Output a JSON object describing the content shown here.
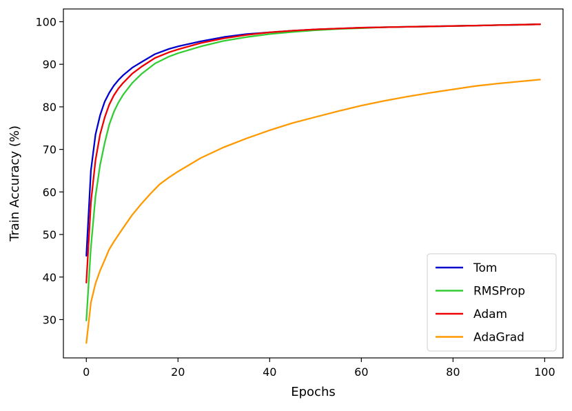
{
  "chart_data": {
    "type": "line",
    "title": "",
    "xlabel": "Epochs",
    "ylabel": "Train Accuracy (%)",
    "xlim": [
      -5,
      104
    ],
    "ylim": [
      21,
      103
    ],
    "xticks": [
      0,
      20,
      40,
      60,
      80,
      100
    ],
    "yticks": [
      30,
      40,
      50,
      60,
      70,
      80,
      90,
      100
    ],
    "grid": false,
    "legend_position": "bottom-right",
    "series": [
      {
        "name": "Tom",
        "color": "#0000cc",
        "x": [
          0,
          1,
          2,
          3,
          4,
          5,
          6,
          7,
          8,
          10,
          12,
          15,
          18,
          20,
          25,
          30,
          35,
          40,
          45,
          50,
          55,
          60,
          65,
          70,
          75,
          80,
          85,
          90,
          95,
          99
        ],
        "y": [
          45.0,
          65.0,
          73.5,
          78.0,
          81.2,
          83.3,
          85.0,
          86.3,
          87.4,
          89.2,
          90.5,
          92.4,
          93.6,
          94.2,
          95.4,
          96.4,
          97.1,
          97.5,
          97.9,
          98.2,
          98.4,
          98.6,
          98.7,
          98.8,
          98.9,
          99.0,
          99.1,
          99.2,
          99.3,
          99.4
        ]
      },
      {
        "name": "RMSProp",
        "color": "#33cc33",
        "x": [
          0,
          1,
          2,
          3,
          4,
          5,
          6,
          7,
          8,
          10,
          12,
          15,
          18,
          20,
          25,
          30,
          35,
          40,
          45,
          50,
          55,
          60,
          65,
          70,
          75,
          80,
          85,
          90,
          95,
          99
        ],
        "y": [
          29.8,
          47.0,
          59.0,
          66.3,
          71.5,
          75.8,
          78.8,
          81.0,
          82.8,
          85.6,
          87.7,
          90.2,
          91.8,
          92.6,
          94.2,
          95.5,
          96.4,
          97.1,
          97.6,
          98.0,
          98.3,
          98.5,
          98.7,
          98.8,
          98.9,
          99.0,
          99.1,
          99.2,
          99.3,
          99.4
        ]
      },
      {
        "name": "Adam",
        "color": "#ee0000",
        "x": [
          0,
          1,
          2,
          3,
          4,
          5,
          6,
          7,
          8,
          10,
          12,
          15,
          18,
          20,
          25,
          30,
          35,
          40,
          45,
          50,
          55,
          60,
          65,
          70,
          75,
          80,
          85,
          90,
          95,
          99
        ],
        "y": [
          38.7,
          57.5,
          67.5,
          73.5,
          77.5,
          80.5,
          82.7,
          84.3,
          85.6,
          87.8,
          89.4,
          91.5,
          92.8,
          93.5,
          95.0,
          96.1,
          96.9,
          97.5,
          97.9,
          98.2,
          98.4,
          98.6,
          98.7,
          98.8,
          98.9,
          99.0,
          99.1,
          99.2,
          99.3,
          99.4
        ]
      },
      {
        "name": "AdaGrad",
        "color": "#ff9900",
        "x": [
          0,
          1,
          2,
          3,
          4,
          5,
          6,
          8,
          10,
          12,
          14,
          16,
          18,
          20,
          25,
          30,
          35,
          40,
          45,
          50,
          55,
          60,
          65,
          70,
          75,
          80,
          85,
          90,
          95,
          99
        ],
        "y": [
          24.5,
          34.0,
          38.5,
          41.5,
          44.0,
          46.5,
          48.3,
          51.5,
          54.6,
          57.2,
          59.6,
          61.8,
          63.4,
          64.8,
          68.0,
          70.5,
          72.6,
          74.5,
          76.2,
          77.6,
          79.0,
          80.3,
          81.4,
          82.4,
          83.3,
          84.1,
          84.9,
          85.5,
          86.0,
          86.4
        ]
      }
    ]
  }
}
